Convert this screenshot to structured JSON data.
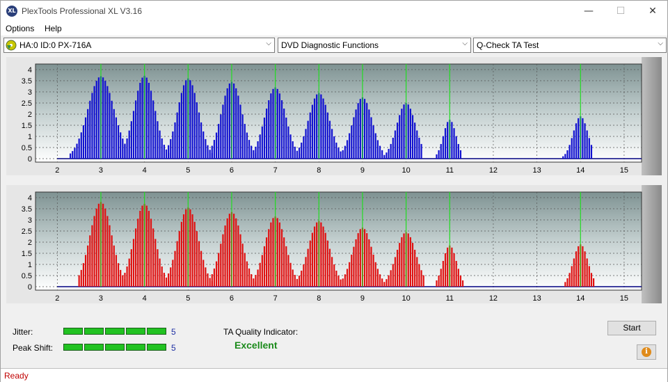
{
  "window": {
    "title": "PlexTools Professional XL V3.16",
    "icon_text": "XL",
    "minimize": "—",
    "maximize": "☐",
    "close": "✕"
  },
  "menu": {
    "items": [
      "Options",
      "Help"
    ]
  },
  "toolbar": {
    "drive": "HA:0 ID:0  PX-716A",
    "function": "DVD Diagnostic Functions",
    "test": "Q-Check TA Test"
  },
  "results": {
    "jitter_label": "Jitter:",
    "jitter_value": "5",
    "jitter_level": 5,
    "peak_shift_label": "Peak Shift:",
    "peak_shift_value": "5",
    "peak_shift_level": 5,
    "quality_label": "TA Quality Indicator:",
    "quality_value": "Excellent"
  },
  "buttons": {
    "start": "Start",
    "info": "i"
  },
  "status": {
    "text": "Ready"
  },
  "colors": {
    "top_bars": "#1010d0",
    "bottom_bars": "#e01010",
    "marker": "#22dd22",
    "meter": "#22c222"
  },
  "chart_data": [
    {
      "type": "bar",
      "series": "top",
      "x_ticks": [
        "2",
        "3",
        "4",
        "5",
        "6",
        "7",
        "8",
        "9",
        "10",
        "11",
        "12",
        "13",
        "14",
        "15"
      ],
      "y_ticks": [
        "0",
        "0.5",
        "1",
        "1.5",
        "2",
        "2.5",
        "3",
        "3.5",
        "4"
      ],
      "xlim": [
        1.5,
        15.4
      ],
      "ylim": [
        0,
        4
      ],
      "markers": [
        3,
        4,
        5,
        6,
        7,
        8,
        9,
        10,
        11,
        14
      ],
      "peaks": [
        {
          "center": 3,
          "height": 3.7,
          "lo": 2.3,
          "hi": 3.55
        },
        {
          "center": 4,
          "height": 3.72,
          "lo": 3.55,
          "hi": 4.55
        },
        {
          "center": 5,
          "height": 3.6,
          "lo": 4.55,
          "hi": 5.55
        },
        {
          "center": 6,
          "height": 3.45,
          "lo": 5.55,
          "hi": 6.55
        },
        {
          "center": 7,
          "height": 3.2,
          "lo": 6.55,
          "hi": 7.55
        },
        {
          "center": 8,
          "height": 2.95,
          "lo": 7.55,
          "hi": 8.55
        },
        {
          "center": 9,
          "height": 2.75,
          "lo": 8.55,
          "hi": 9.5
        },
        {
          "center": 10,
          "height": 2.5,
          "lo": 9.5,
          "hi": 10.4
        },
        {
          "center": 11,
          "height": 1.75,
          "lo": 10.7,
          "hi": 11.3
        },
        {
          "center": 14,
          "height": 1.9,
          "lo": 13.6,
          "hi": 14.3
        }
      ]
    },
    {
      "type": "bar",
      "series": "bottom",
      "x_ticks": [
        "2",
        "3",
        "4",
        "5",
        "6",
        "7",
        "8",
        "9",
        "10",
        "11",
        "12",
        "13",
        "14",
        "15"
      ],
      "y_ticks": [
        "0",
        "0.5",
        "1",
        "1.5",
        "2",
        "2.5",
        "3",
        "3.5",
        "4"
      ],
      "xlim": [
        1.5,
        15.4
      ],
      "ylim": [
        0,
        4
      ],
      "markers": [
        3,
        4,
        5,
        6,
        7,
        8,
        9,
        10,
        11,
        14
      ],
      "peaks": [
        {
          "center": 3,
          "height": 3.8,
          "lo": 2.5,
          "hi": 3.55
        },
        {
          "center": 4,
          "height": 3.72,
          "lo": 3.55,
          "hi": 4.55
        },
        {
          "center": 5,
          "height": 3.55,
          "lo": 4.55,
          "hi": 5.55
        },
        {
          "center": 6,
          "height": 3.35,
          "lo": 5.55,
          "hi": 6.55
        },
        {
          "center": 7,
          "height": 3.15,
          "lo": 6.55,
          "hi": 7.55
        },
        {
          "center": 8,
          "height": 2.95,
          "lo": 7.55,
          "hi": 8.55
        },
        {
          "center": 9,
          "height": 2.65,
          "lo": 8.55,
          "hi": 9.5
        },
        {
          "center": 10,
          "height": 2.45,
          "lo": 9.5,
          "hi": 10.45
        },
        {
          "center": 11,
          "height": 1.85,
          "lo": 10.7,
          "hi": 11.35
        },
        {
          "center": 14,
          "height": 1.9,
          "lo": 13.65,
          "hi": 14.35
        }
      ]
    }
  ]
}
